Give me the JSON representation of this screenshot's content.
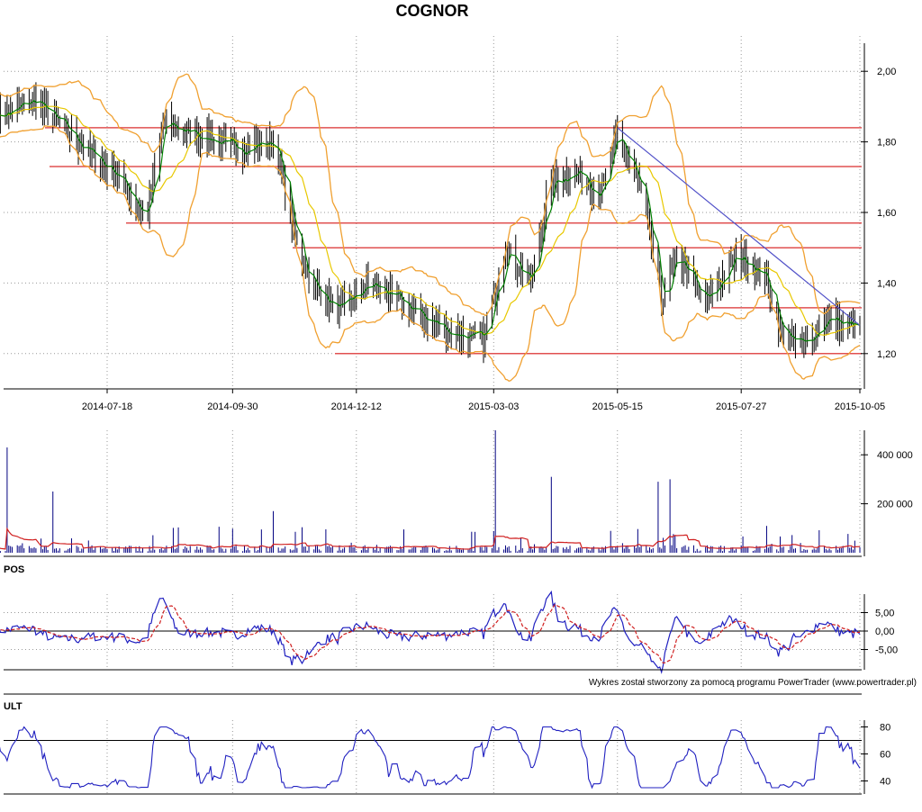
{
  "title": "COGNOR",
  "credit": "Wykres został stworzony za pomocą programu PowerTrader (www.powertrader.pl)",
  "colors": {
    "price_bar": "#000000",
    "ma_short": "#008000",
    "ma_long": "#e8c800",
    "bollinger": "#f0a030",
    "support": "#e05050",
    "trendline": "#5050c8",
    "volume": "#000080",
    "volume_ma": "#d02020",
    "pos": "#2020c0",
    "pos_signal": "#d02020",
    "ult": "#2020c0",
    "grid": "#999999"
  },
  "chart_data": [
    {
      "type": "ohlc",
      "name": "price",
      "x_ticks": [
        "2014-07-18",
        "2014-09-30",
        "2014-12-12",
        "2015-03-03",
        "2015-05-15",
        "2015-07-27",
        "2015-10-05"
      ],
      "y_ticks": [
        "2,00",
        "1,80",
        "1,60",
        "1,40",
        "1,20"
      ],
      "ylim": [
        1.1,
        2.1
      ],
      "support_levels": [
        1.84,
        1.73,
        1.57,
        1.5,
        1.33,
        1.2
      ],
      "trendline": [
        {
          "date": "2015-05-15",
          "y": 1.84
        },
        {
          "date": "2015-10-05",
          "y": 1.28
        }
      ],
      "close_anchors": [
        {
          "date": "2014-05-20",
          "y": 1.88
        },
        {
          "date": "2014-06-05",
          "y": 1.92
        },
        {
          "date": "2014-06-20",
          "y": 1.85
        },
        {
          "date": "2014-07-05",
          "y": 1.78
        },
        {
          "date": "2014-07-25",
          "y": 1.7
        },
        {
          "date": "2014-08-10",
          "y": 1.58
        },
        {
          "date": "2014-08-20",
          "y": 1.85
        },
        {
          "date": "2014-09-10",
          "y": 1.82
        },
        {
          "date": "2014-10-01",
          "y": 1.78
        },
        {
          "date": "2014-10-25",
          "y": 1.8
        },
        {
          "date": "2014-11-05",
          "y": 1.55
        },
        {
          "date": "2014-11-15",
          "y": 1.4
        },
        {
          "date": "2014-12-01",
          "y": 1.32
        },
        {
          "date": "2014-12-20",
          "y": 1.4
        },
        {
          "date": "2015-01-15",
          "y": 1.32
        },
        {
          "date": "2015-02-05",
          "y": 1.26
        },
        {
          "date": "2015-02-25",
          "y": 1.24
        },
        {
          "date": "2015-03-10",
          "y": 1.5
        },
        {
          "date": "2015-03-25",
          "y": 1.4
        },
        {
          "date": "2015-04-05",
          "y": 1.68
        },
        {
          "date": "2015-04-20",
          "y": 1.72
        },
        {
          "date": "2015-05-05",
          "y": 1.65
        },
        {
          "date": "2015-05-15",
          "y": 1.82
        },
        {
          "date": "2015-05-30",
          "y": 1.65
        },
        {
          "date": "2015-06-10",
          "y": 1.35
        },
        {
          "date": "2015-06-20",
          "y": 1.48
        },
        {
          "date": "2015-07-05",
          "y": 1.34
        },
        {
          "date": "2015-07-25",
          "y": 1.48
        },
        {
          "date": "2015-08-10",
          "y": 1.42
        },
        {
          "date": "2015-08-20",
          "y": 1.26
        },
        {
          "date": "2015-09-01",
          "y": 1.22
        },
        {
          "date": "2015-09-15",
          "y": 1.3
        },
        {
          "date": "2015-10-05",
          "y": 1.27
        }
      ]
    },
    {
      "type": "bar",
      "name": "volume",
      "y_ticks": [
        "400 000",
        "200 000"
      ],
      "ylim": [
        0,
        500000
      ],
      "base_level": 18000,
      "spikes": [
        {
          "date": "2014-05-20",
          "value": 430000
        },
        {
          "date": "2014-06-15",
          "value": 250000
        },
        {
          "date": "2014-10-25",
          "value": 170000
        },
        {
          "date": "2015-03-04",
          "value": 500000
        },
        {
          "date": "2015-04-05",
          "value": 310000
        },
        {
          "date": "2015-06-08",
          "value": 290000
        },
        {
          "date": "2015-06-14",
          "value": 300000
        }
      ],
      "ma_level": 30000
    },
    {
      "type": "line",
      "name": "POS",
      "label": "POS",
      "y_ticks": [
        "5,00",
        "0,00",
        "-5,00"
      ],
      "ylim": [
        -10,
        10
      ]
    },
    {
      "type": "line",
      "name": "ULT",
      "label": "ULT",
      "y_ticks": [
        "80",
        "60",
        "40"
      ],
      "ylim": [
        25,
        85
      ],
      "reference_line": 70
    }
  ]
}
